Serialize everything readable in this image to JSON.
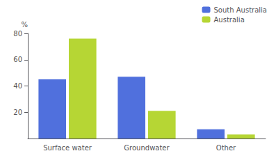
{
  "chart_data": {
    "type": "bar",
    "ylabel": "%",
    "categories": [
      "Surface water",
      "Groundwater",
      "Other"
    ],
    "series": [
      {
        "name": "South Australia",
        "values": [
          45,
          47,
          7
        ]
      },
      {
        "name": "Australia",
        "values": [
          76,
          21,
          3
        ]
      }
    ],
    "ylim": [
      0,
      80
    ],
    "yticks": [
      20,
      40,
      60,
      80
    ],
    "grid": false,
    "legend": "upper right"
  }
}
